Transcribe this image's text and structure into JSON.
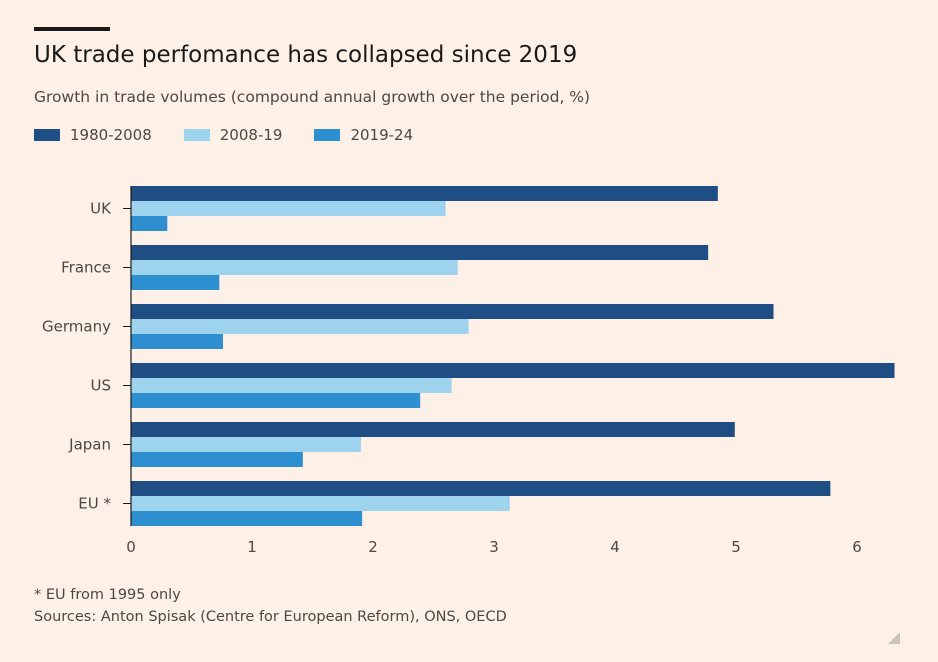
{
  "title": "UK trade perfomance has collapsed since 2019",
  "subtitle": "Growth in trade volumes (compound annual growth over the period, %)",
  "colors": {
    "s1": "#1f4e85",
    "s2": "#9dd3ec",
    "s3": "#2d8fcf",
    "axis": "#1a1a1a",
    "text": "#4d4845"
  },
  "footnote": "* EU from 1995 only",
  "sources": "Sources: Anton Spisak (Centre for European Reform), ONS, OECD",
  "chart_data": {
    "type": "bar",
    "orientation": "horizontal",
    "title": "UK trade perfomance has collapsed since 2019",
    "subtitle": "Growth in trade volumes (compound annual growth over the period, %)",
    "categories": [
      "UK",
      "France",
      "Germany",
      "US",
      "Japan",
      "EU *"
    ],
    "series": [
      {
        "name": "1980-2008",
        "color": "#1f4e85",
        "values": [
          4.85,
          4.77,
          5.31,
          6.31,
          4.99,
          5.78
        ]
      },
      {
        "name": "2008-19",
        "color": "#9dd3ec",
        "values": [
          2.6,
          2.7,
          2.79,
          2.65,
          1.9,
          3.13
        ]
      },
      {
        "name": "2019-24",
        "color": "#2d8fcf",
        "values": [
          0.3,
          0.73,
          0.76,
          2.39,
          1.42,
          1.91
        ]
      }
    ],
    "xlim": [
      0,
      6.3
    ],
    "xticks": [
      0,
      1,
      2,
      3,
      4,
      5,
      6
    ],
    "xlabel": "",
    "ylabel": "",
    "legend": "top-left",
    "grid": false
  }
}
